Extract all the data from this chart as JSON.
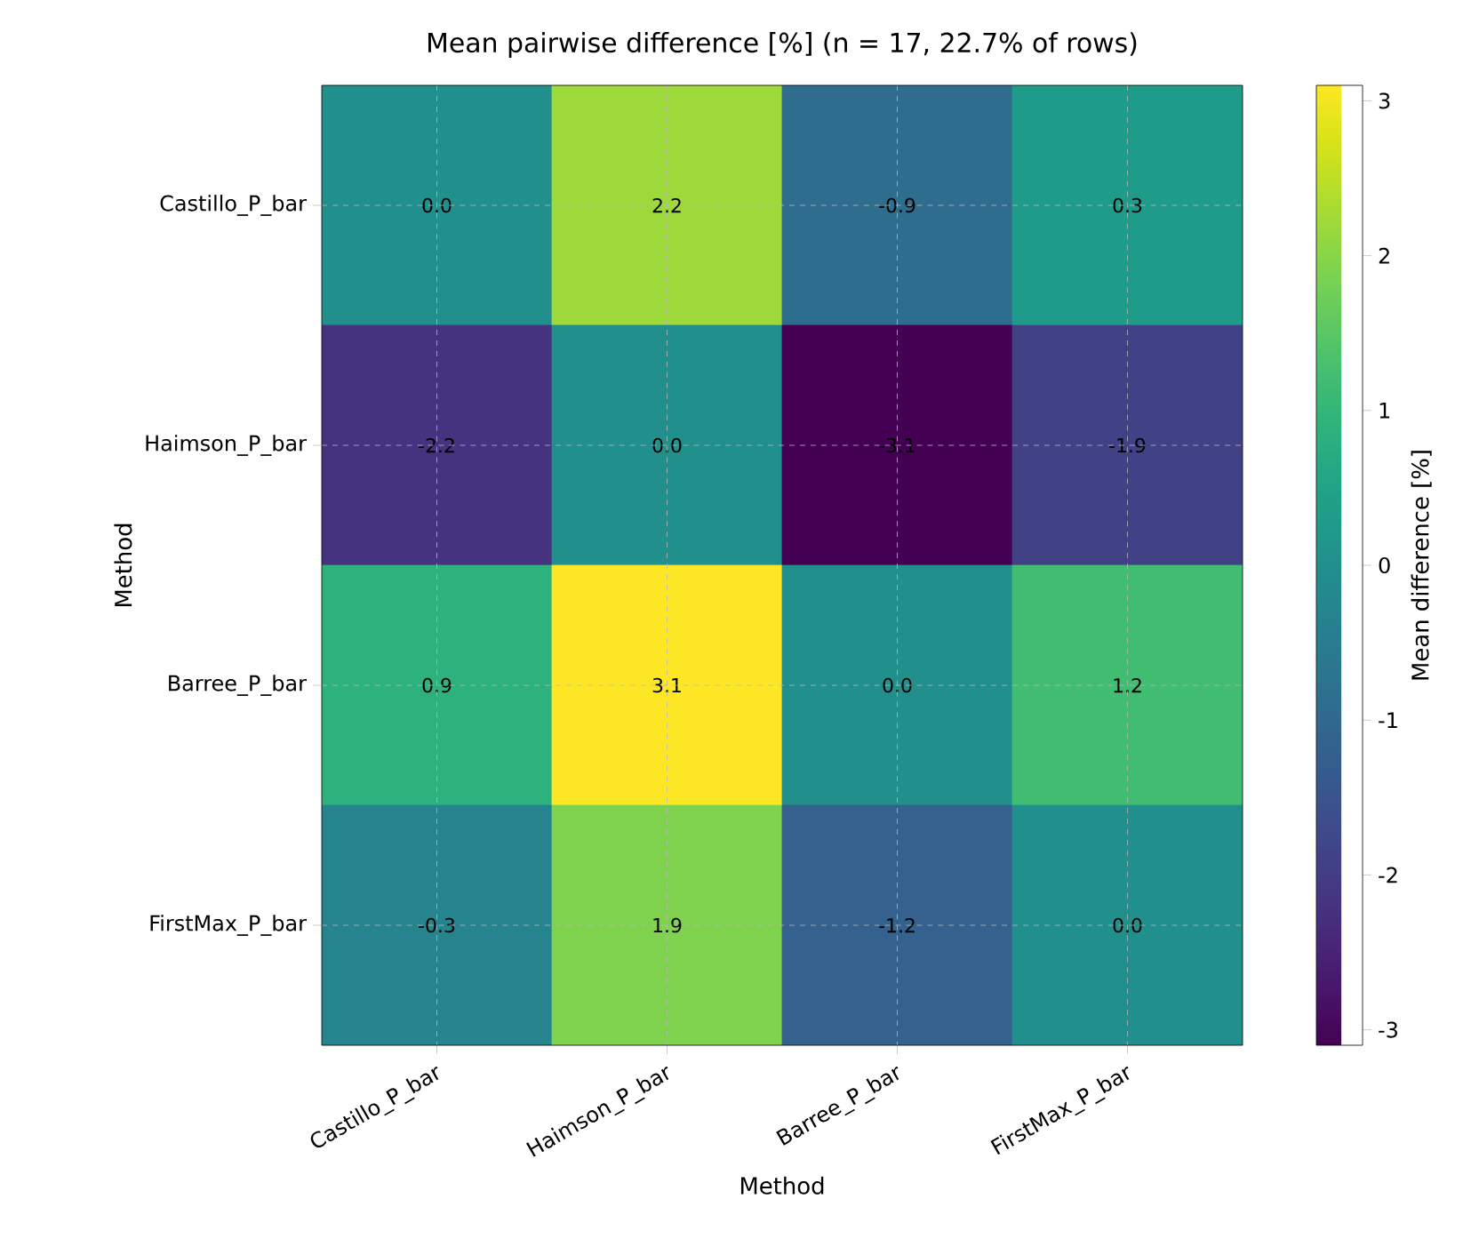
{
  "chart_data": {
    "type": "heatmap",
    "title": "Mean pairwise difference [%] (n = 17, 22.7% of rows)",
    "xlabel": "Method",
    "ylabel": "Method",
    "clabel": "Mean difference [%]",
    "categories": [
      "Castillo_P_bar",
      "Haimson_P_bar",
      "Barree_P_bar",
      "FirstMax_P_bar"
    ],
    "y_categories": [
      "Castillo_P_bar",
      "Haimson_P_bar",
      "Barree_P_bar",
      "FirstMax_P_bar"
    ],
    "cells": [
      [
        0.0,
        2.2,
        -0.9,
        0.3
      ],
      [
        -2.2,
        0.0,
        -3.1,
        -1.9
      ],
      [
        0.9,
        3.1,
        0.0,
        1.2
      ],
      [
        -0.3,
        1.9,
        -1.2,
        0.0
      ]
    ],
    "cell_labels": [
      [
        "0.0",
        "2.2",
        "-0.9",
        "0.3"
      ],
      [
        "-2.2",
        "0.0",
        "-3.1",
        "-1.9"
      ],
      [
        "0.9",
        "3.1",
        "0.0",
        "1.2"
      ],
      [
        "-0.3",
        "1.9",
        "-1.2",
        "0.0"
      ]
    ],
    "clim": [
      -3.1,
      3.1
    ],
    "cticks": [
      -3,
      -2,
      -1,
      0,
      1,
      2,
      3
    ],
    "grid": true
  }
}
